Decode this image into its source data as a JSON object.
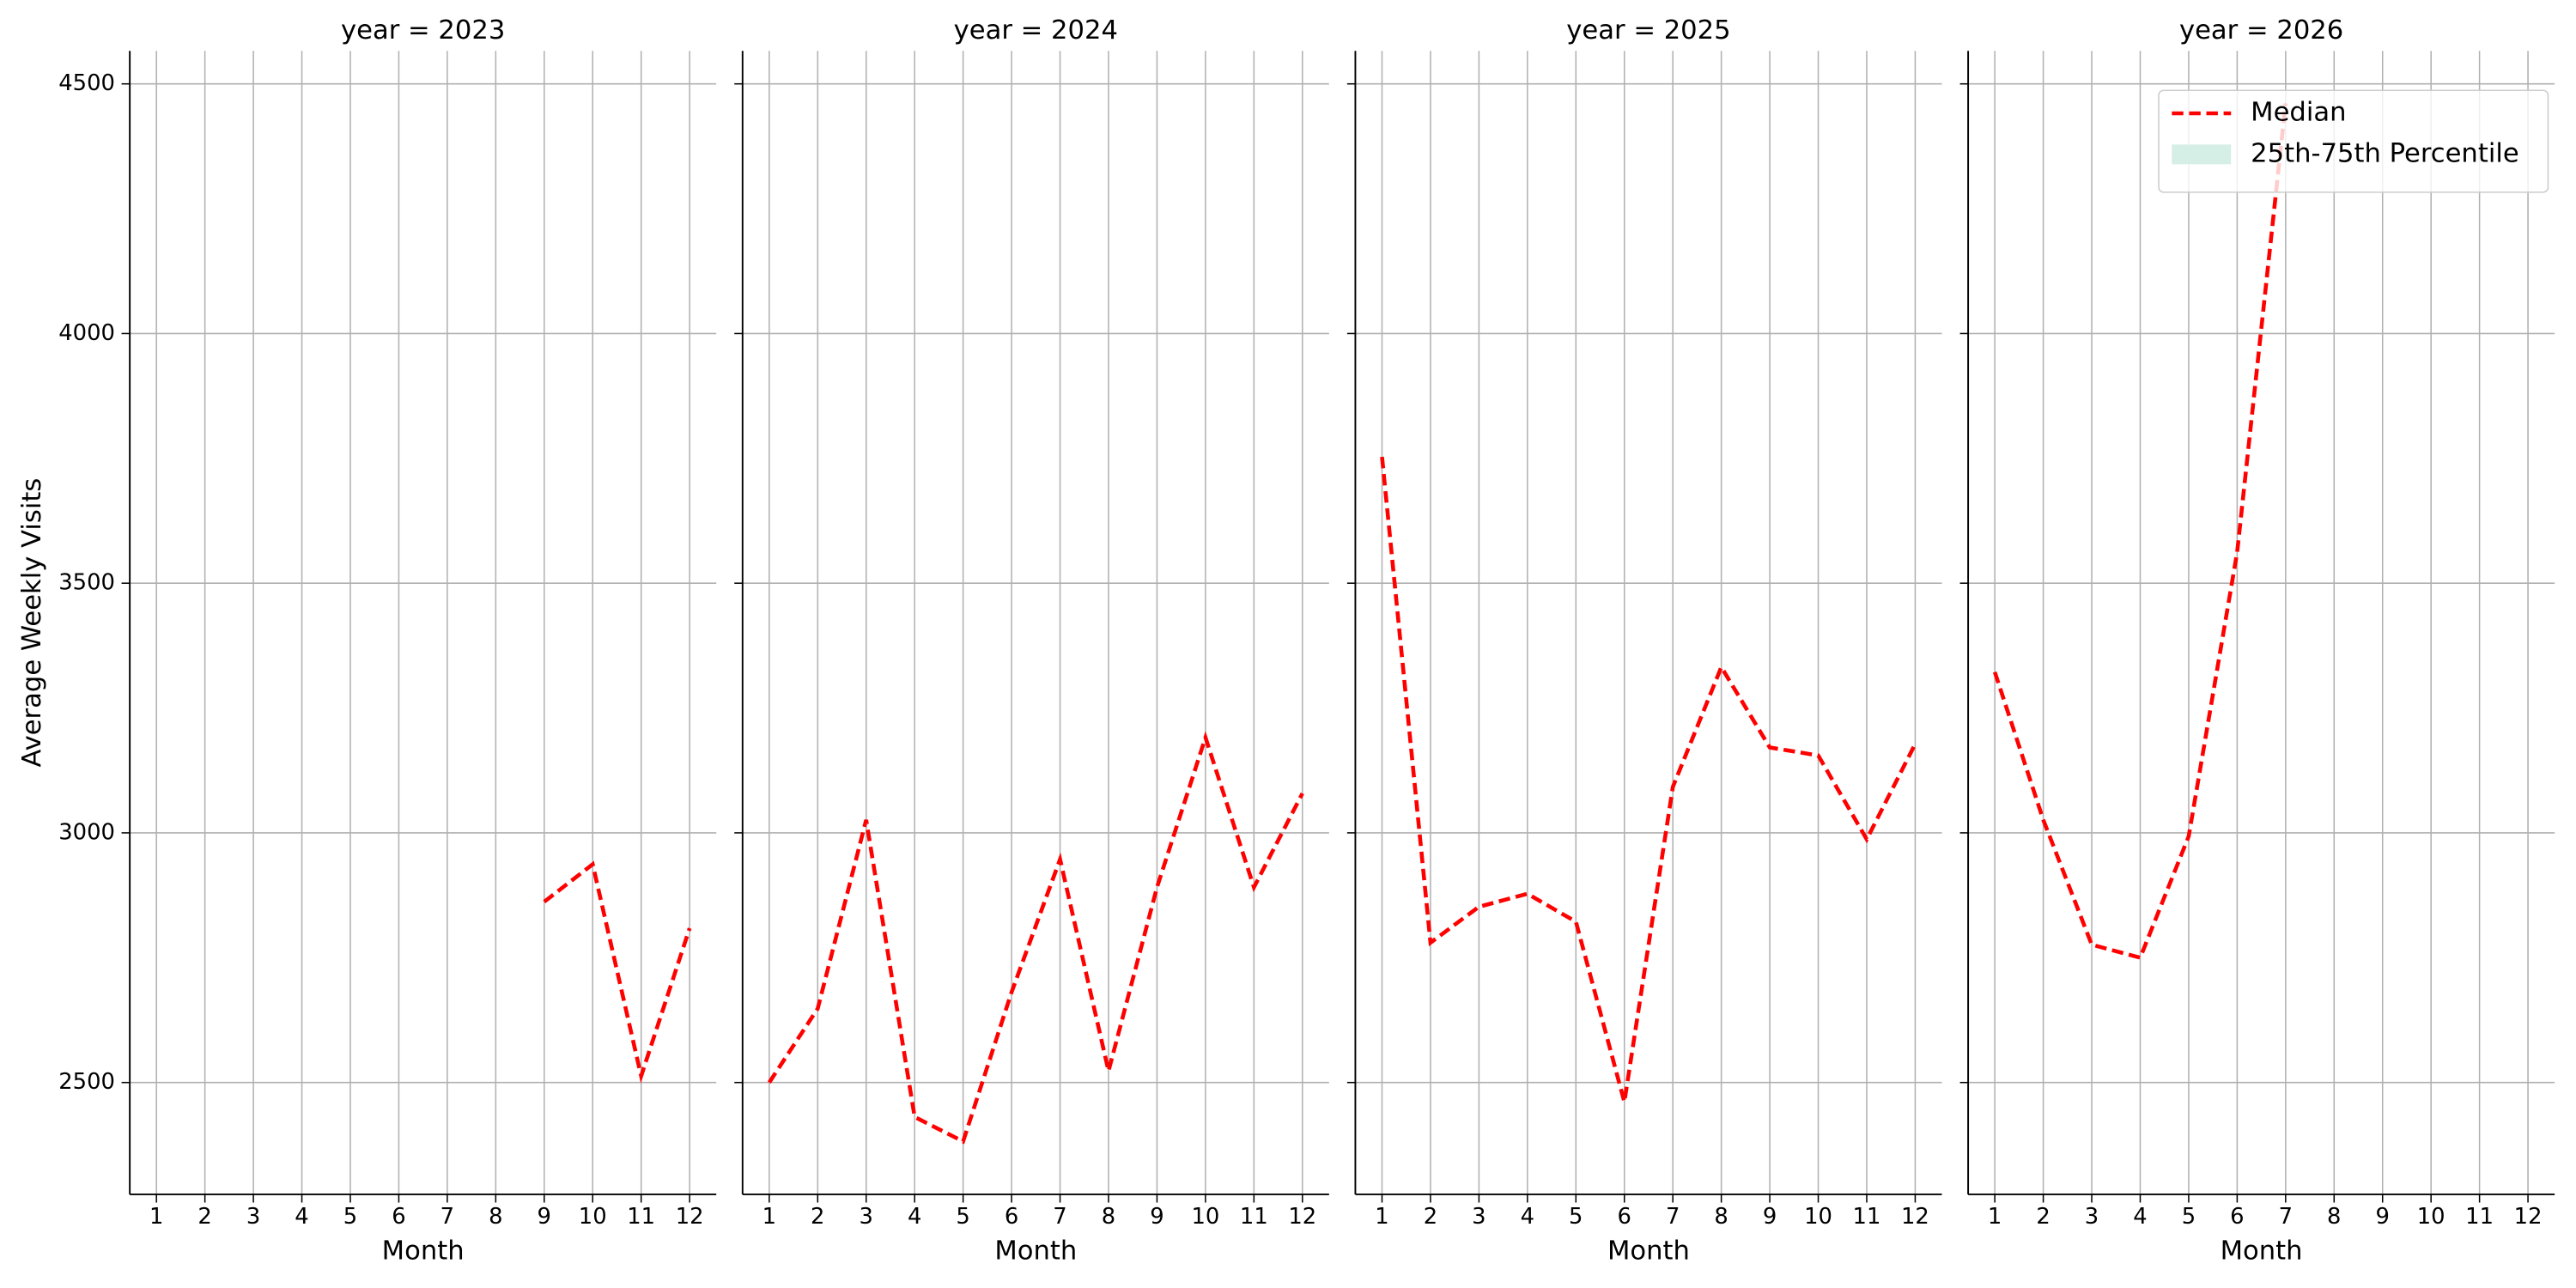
{
  "chart_data": [
    {
      "type": "line",
      "title": "year = 2023",
      "xlabel": "Month",
      "ylabel": "Average Weekly Visits",
      "x": [
        1,
        2,
        3,
        4,
        5,
        6,
        7,
        8,
        9,
        10,
        11,
        12
      ],
      "series": [
        {
          "name": "Median",
          "color": "#ff0000",
          "style": "dashed",
          "values": [
            null,
            null,
            null,
            null,
            null,
            null,
            null,
            null,
            2862,
            2937,
            2513,
            2809
          ]
        }
      ],
      "xlim": [
        0.45,
        12.55
      ],
      "xticks": [
        1,
        2,
        3,
        4,
        5,
        6,
        7,
        8,
        9,
        10,
        11,
        12
      ],
      "ylim": [
        2276,
        4566
      ],
      "yticks": [
        2500,
        3000,
        3500,
        4000,
        4500
      ],
      "grid": true
    },
    {
      "type": "line",
      "title": "year = 2024",
      "xlabel": "Month",
      "x": [
        1,
        2,
        3,
        4,
        5,
        6,
        7,
        8,
        9,
        10,
        11,
        12
      ],
      "series": [
        {
          "name": "Median",
          "color": "#ff0000",
          "style": "dashed",
          "values": [
            2500,
            2648,
            3026,
            2431,
            2382,
            2681,
            2947,
            2523,
            2891,
            3191,
            2891,
            3079
          ]
        }
      ],
      "xlim": [
        0.45,
        12.55
      ],
      "xticks": [
        1,
        2,
        3,
        4,
        5,
        6,
        7,
        8,
        9,
        10,
        11,
        12
      ],
      "ylim": [
        2276,
        4566
      ],
      "yticks": [
        2500,
        3000,
        3500,
        4000,
        4500
      ],
      "grid": true
    },
    {
      "type": "line",
      "title": "year = 2025",
      "xlabel": "Month",
      "x": [
        1,
        2,
        3,
        4,
        5,
        6,
        7,
        8,
        9,
        10,
        11,
        12
      ],
      "series": [
        {
          "name": "Median",
          "color": "#ff0000",
          "style": "dashed",
          "values": [
            3753,
            2780,
            2852,
            2878,
            2822,
            2461,
            3092,
            3332,
            3171,
            3155,
            2987,
            3178
          ]
        }
      ],
      "xlim": [
        0.45,
        12.55
      ],
      "xticks": [
        1,
        2,
        3,
        4,
        5,
        6,
        7,
        8,
        9,
        10,
        11,
        12
      ],
      "ylim": [
        2276,
        4566
      ],
      "yticks": [
        2500,
        3000,
        3500,
        4000,
        4500
      ],
      "grid": true
    },
    {
      "type": "line",
      "title": "year = 2026",
      "xlabel": "Month",
      "x": [
        1,
        2,
        3,
        4,
        5,
        6,
        7,
        8,
        9,
        10,
        11,
        12
      ],
      "series": [
        {
          "name": "Median",
          "color": "#ff0000",
          "style": "dashed",
          "values": [
            3322,
            3026,
            2776,
            2750,
            2993,
            3562,
            4461,
            null,
            null,
            null,
            null,
            null
          ]
        }
      ],
      "patches": [
        {
          "name": "25th-75th Percentile",
          "color": "#d5eee6"
        }
      ],
      "legend": "upper right",
      "xlim": [
        0.45,
        12.55
      ],
      "xticks": [
        1,
        2,
        3,
        4,
        5,
        6,
        7,
        8,
        9,
        10,
        11,
        12
      ],
      "ylim": [
        2276,
        4566
      ],
      "yticks": [
        2500,
        3000,
        3500,
        4000,
        4500
      ],
      "grid": true
    }
  ]
}
